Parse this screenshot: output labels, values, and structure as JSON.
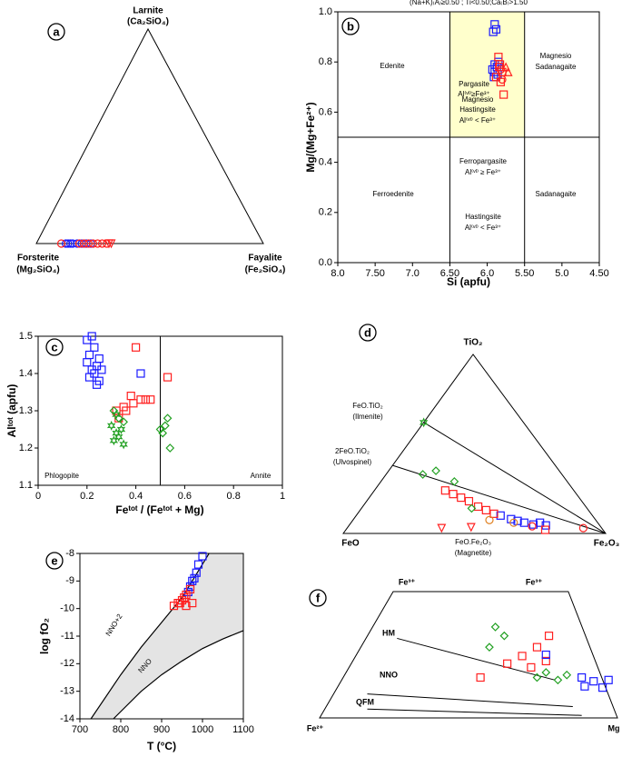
{
  "chart_data": [
    {
      "type": "ternary",
      "panel": "a",
      "corners": {
        "top": [
          "Larnite",
          "(Ca₂SiO₄)"
        ],
        "left": [
          "Forsterite",
          "(Mg₂SiO₄)"
        ],
        "right": [
          "Fayalite",
          "(Fe₂SiO₄)"
        ]
      },
      "series": [
        {
          "color": "#1a1aff",
          "marker": "circle",
          "top": [
            0,
            0,
            0,
            0,
            0,
            0,
            0,
            0
          ],
          "right": [
            0.13,
            0.14,
            0.15,
            0.16,
            0.18,
            0.2,
            0.22,
            0.24
          ]
        },
        {
          "color": "#ff2020",
          "marker": "circle",
          "top": [
            0,
            0,
            0,
            0,
            0,
            0,
            0,
            0
          ],
          "right": [
            0.11,
            0.19,
            0.21,
            0.23,
            0.25,
            0.27,
            0.29,
            0.31
          ]
        },
        {
          "color": "#ff2020",
          "marker": "triangle-down",
          "top": [
            0,
            0
          ],
          "right": [
            0.32,
            0.33
          ]
        }
      ]
    },
    {
      "type": "scatter",
      "panel": "b",
      "title": "(Na+K)₍A₎≥0.50 ; Ti<0.50;Ca₍B₎>1.50",
      "xlabel": "Si (apfu)",
      "ylabel": "Mg/(Mg+Fe²⁺)",
      "xlim": [
        8.0,
        4.5
      ],
      "ylim": [
        0,
        1.0
      ],
      "xticks": [
        {
          "value": 8,
          "label": "8.0"
        },
        {
          "value": 7.5,
          "label": "7.50"
        },
        {
          "value": 7,
          "label": "7.0"
        },
        {
          "value": 6.5,
          "label": "6.50"
        },
        {
          "value": 6,
          "label": "6.0"
        },
        {
          "value": 5.5,
          "label": "5.50"
        },
        {
          "value": 5,
          "label": "5.0"
        },
        {
          "value": 4.5,
          "label": "4.50"
        }
      ],
      "yticks": [
        {
          "value": 0,
          "label": "0.0"
        },
        0.2,
        0.4,
        0.6,
        0.8,
        {
          "value": 1,
          "label": "1.0"
        }
      ],
      "highlight": {
        "x": [
          6.5,
          5.5
        ],
        "y": [
          0.5,
          1.0
        ]
      },
      "highlight_color": "#ffffcc",
      "dividers": {
        "x": [
          6.5,
          5.5
        ],
        "y": [
          0.5
        ]
      },
      "annotations": [
        "Edenite",
        "Pargasite",
        "Al⁽ᵛᴵ⁾≥Fe³⁺",
        "Magnesio",
        "Sadanagaite",
        "Magnesio",
        "Hastingsite",
        "Al⁽ᵛᴵ⁾ < Fe³⁺",
        "Ferropargasite",
        "Al⁽ᵛᴵ⁾ ≥ Fe³⁺",
        "Ferroedenite",
        "Hastingsite",
        "Al⁽ᵛᴵ⁾ < Fe³⁺",
        "Sadanagaite"
      ],
      "series": [
        {
          "color": "#1a1aff",
          "marker": "square",
          "x": [
            5.9,
            5.88,
            5.92,
            5.85,
            5.9,
            5.87,
            5.93,
            5.9,
            5.86,
            5.91
          ],
          "values": [
            0.95,
            0.93,
            0.92,
            0.8,
            0.79,
            0.78,
            0.77,
            0.76,
            0.75,
            0.74
          ]
        },
        {
          "color": "#ff2020",
          "marker": "square",
          "x": [
            5.85,
            5.83,
            5.8,
            5.82,
            5.78,
            5.88,
            5.84
          ],
          "values": [
            0.82,
            0.79,
            0.76,
            0.72,
            0.67,
            0.74,
            0.78
          ]
        },
        {
          "color": "#ff2020",
          "marker": "circle",
          "x": [
            5.82,
            5.8
          ],
          "values": [
            0.77,
            0.73
          ]
        },
        {
          "color": "#ff2020",
          "marker": "triangle-up",
          "x": [
            5.75,
            5.72
          ],
          "values": [
            0.78,
            0.76
          ]
        }
      ]
    },
    {
      "type": "scatter",
      "panel": "c",
      "xlabel": "Feᵗᵒᵗ / (Feᵗᵒᵗ + Mg)",
      "ylabel": "Alᵗᵒᵗ (apfu)",
      "xlim": [
        0,
        1
      ],
      "ylim": [
        1.1,
        1.5
      ],
      "xticks": [
        0,
        0.2,
        0.4,
        0.6,
        0.8,
        1
      ],
      "yticks": [
        1.1,
        1.2,
        1.3,
        1.4,
        1.5
      ],
      "dividers": {
        "x": [
          0.5
        ]
      },
      "annotations": [
        "Phlogopite",
        "Annite"
      ],
      "series": [
        {
          "color": "#1a1aff",
          "marker": "square",
          "x": [
            0.2,
            0.22,
            0.23,
            0.21,
            0.25,
            0.24,
            0.2,
            0.22,
            0.26,
            0.23,
            0.21,
            0.25,
            0.24,
            0.42
          ],
          "values": [
            1.49,
            1.5,
            1.47,
            1.45,
            1.44,
            1.42,
            1.43,
            1.41,
            1.41,
            1.4,
            1.39,
            1.38,
            1.37,
            1.4
          ]
        },
        {
          "color": "#ff2020",
          "marker": "square",
          "x": [
            0.4,
            0.53,
            0.38,
            0.42,
            0.44,
            0.46,
            0.32,
            0.35,
            0.33,
            0.36,
            0.39
          ],
          "values": [
            1.47,
            1.39,
            1.34,
            1.33,
            1.33,
            1.33,
            1.3,
            1.31,
            1.28,
            1.3,
            1.32
          ]
        },
        {
          "color": "#22a022",
          "marker": "diamond",
          "x": [
            0.31,
            0.33,
            0.35,
            0.5,
            0.52,
            0.53,
            0.54,
            0.51
          ],
          "values": [
            1.3,
            1.28,
            1.27,
            1.25,
            1.26,
            1.28,
            1.2,
            1.24
          ]
        },
        {
          "color": "#22a022",
          "marker": "star",
          "x": [
            0.3,
            0.32,
            0.34,
            0.33,
            0.31,
            0.35,
            0.32
          ],
          "values": [
            1.26,
            1.29,
            1.25,
            1.23,
            1.22,
            1.21,
            1.24
          ]
        }
      ]
    },
    {
      "type": "ternary",
      "panel": "d",
      "corners": {
        "top": [
          "TiO₂"
        ],
        "left": [
          "FeO"
        ],
        "right": [
          "Fe₂O₃"
        ]
      },
      "joins": [
        {
          "top": 0.62,
          "labels": [
            "FeO.TiO₂",
            "(Ilmenite)"
          ]
        },
        {
          "top": 0.38,
          "labels": [
            "2FeO.TiO₂",
            "(Ulvospinel)"
          ]
        }
      ],
      "annotations": [
        "FeO.Fe₂O₃",
        "(Magnetite)"
      ],
      "series": [
        {
          "color": "#1a1aff",
          "marker": "square",
          "top": [
            0.1,
            0.08,
            0.07,
            0.06,
            0.05,
            0.045,
            0.06
          ],
          "right": [
            0.55,
            0.6,
            0.63,
            0.66,
            0.7,
            0.75,
            0.72
          ]
        },
        {
          "color": "#ff2020",
          "marker": "square",
          "top": [
            0.24,
            0.22,
            0.2,
            0.18,
            0.15,
            0.13,
            0.11,
            0.02
          ],
          "right": [
            0.27,
            0.31,
            0.35,
            0.39,
            0.44,
            0.48,
            0.52,
            0.76
          ]
        },
        {
          "color": "#ff2020",
          "marker": "circle",
          "top": [
            0.03,
            0.04
          ],
          "right": [
            0.9,
            0.7
          ]
        },
        {
          "color": "#ff2020",
          "marker": "triangle-down",
          "top": [
            0.03,
            0.035
          ],
          "right": [
            0.36,
            0.47
          ]
        },
        {
          "color": "#22a022",
          "marker": "diamond",
          "top": [
            0.33,
            0.35,
            0.29,
            0.14
          ],
          "right": [
            0.14,
            0.18,
            0.28,
            0.42
          ]
        },
        {
          "color": "#e08020",
          "marker": "circle",
          "top": [
            0.075,
            0.06
          ],
          "right": [
            0.52,
            0.62
          ]
        },
        {
          "color": "#22a022",
          "marker": "star",
          "top": [
            0.62
          ],
          "right": [
            0
          ]
        }
      ]
    },
    {
      "type": "scatter",
      "panel": "e",
      "xlabel": "T (°C)",
      "ylabel": "log fO₂",
      "xlim": [
        700,
        1100
      ],
      "ylim": [
        -14,
        -8
      ],
      "xticks": [
        700,
        800,
        900,
        1000,
        1100
      ],
      "yticks": [
        -14,
        -13,
        -12,
        -11,
        -10,
        -9,
        -8
      ],
      "band_color": "#e4e4e4",
      "curves": [
        {
          "name": "NNO+2",
          "x": [
            727,
            800,
            850,
            900,
            950,
            1016
          ],
          "values": [
            -14,
            -12.4,
            -11.4,
            -10.5,
            -9.6,
            -8
          ]
        },
        {
          "name": "NNO",
          "x": [
            782,
            850,
            900,
            950,
            1000,
            1050,
            1100
          ],
          "values": [
            -14,
            -13,
            -12.4,
            -11.9,
            -11.45,
            -11.1,
            -10.8
          ]
        }
      ],
      "series": [
        {
          "color": "#1a1aff",
          "marker": "square",
          "x": [
            1000,
            990,
            985,
            980,
            975,
            970,
            965
          ],
          "values": [
            -8.1,
            -8.4,
            -8.7,
            -8.9,
            -9.0,
            -9.2,
            -9.4
          ]
        },
        {
          "color": "#ff2020",
          "marker": "square",
          "x": [
            970,
            960,
            955,
            950,
            945,
            940,
            930,
            960,
            975
          ],
          "values": [
            -9.3,
            -9.5,
            -9.6,
            -9.7,
            -9.8,
            -9.8,
            -9.9,
            -9.9,
            -9.8
          ]
        }
      ]
    },
    {
      "type": "trapezoid",
      "panel": "f",
      "corners": [
        "Fe³⁺",
        "Fe³⁺",
        "Fe²⁺",
        "Mg"
      ],
      "lines": [
        {
          "name": "HM",
          "x": [
            0.26,
            0.79
          ],
          "values": [
            0.63,
            0.3
          ]
        },
        {
          "name": "NNO",
          "x": [
            0.16,
            0.85
          ],
          "values": [
            0.19,
            0.09
          ]
        },
        {
          "name": "QFM",
          "x": [
            0.16,
            0.88
          ],
          "values": [
            0.07,
            0.02
          ]
        }
      ],
      "series": [
        {
          "color": "#ff2020",
          "marker": "square",
          "x": [
            0.77,
            0.73,
            0.68,
            0.63,
            0.54,
            0.76,
            0.71
          ],
          "values": [
            0.65,
            0.56,
            0.49,
            0.43,
            0.32,
            0.45,
            0.4
          ]
        },
        {
          "color": "#1a1aff",
          "marker": "square",
          "x": [
            0.76,
            0.88,
            0.92,
            0.97,
            0.95,
            0.89
          ],
          "values": [
            0.5,
            0.32,
            0.29,
            0.3,
            0.24,
            0.25
          ]
        },
        {
          "color": "#22a022",
          "marker": "diamond",
          "x": [
            0.59,
            0.62,
            0.57,
            0.76,
            0.8,
            0.83,
            0.73
          ],
          "values": [
            0.72,
            0.65,
            0.56,
            0.36,
            0.3,
            0.34,
            0.32
          ]
        }
      ]
    }
  ]
}
